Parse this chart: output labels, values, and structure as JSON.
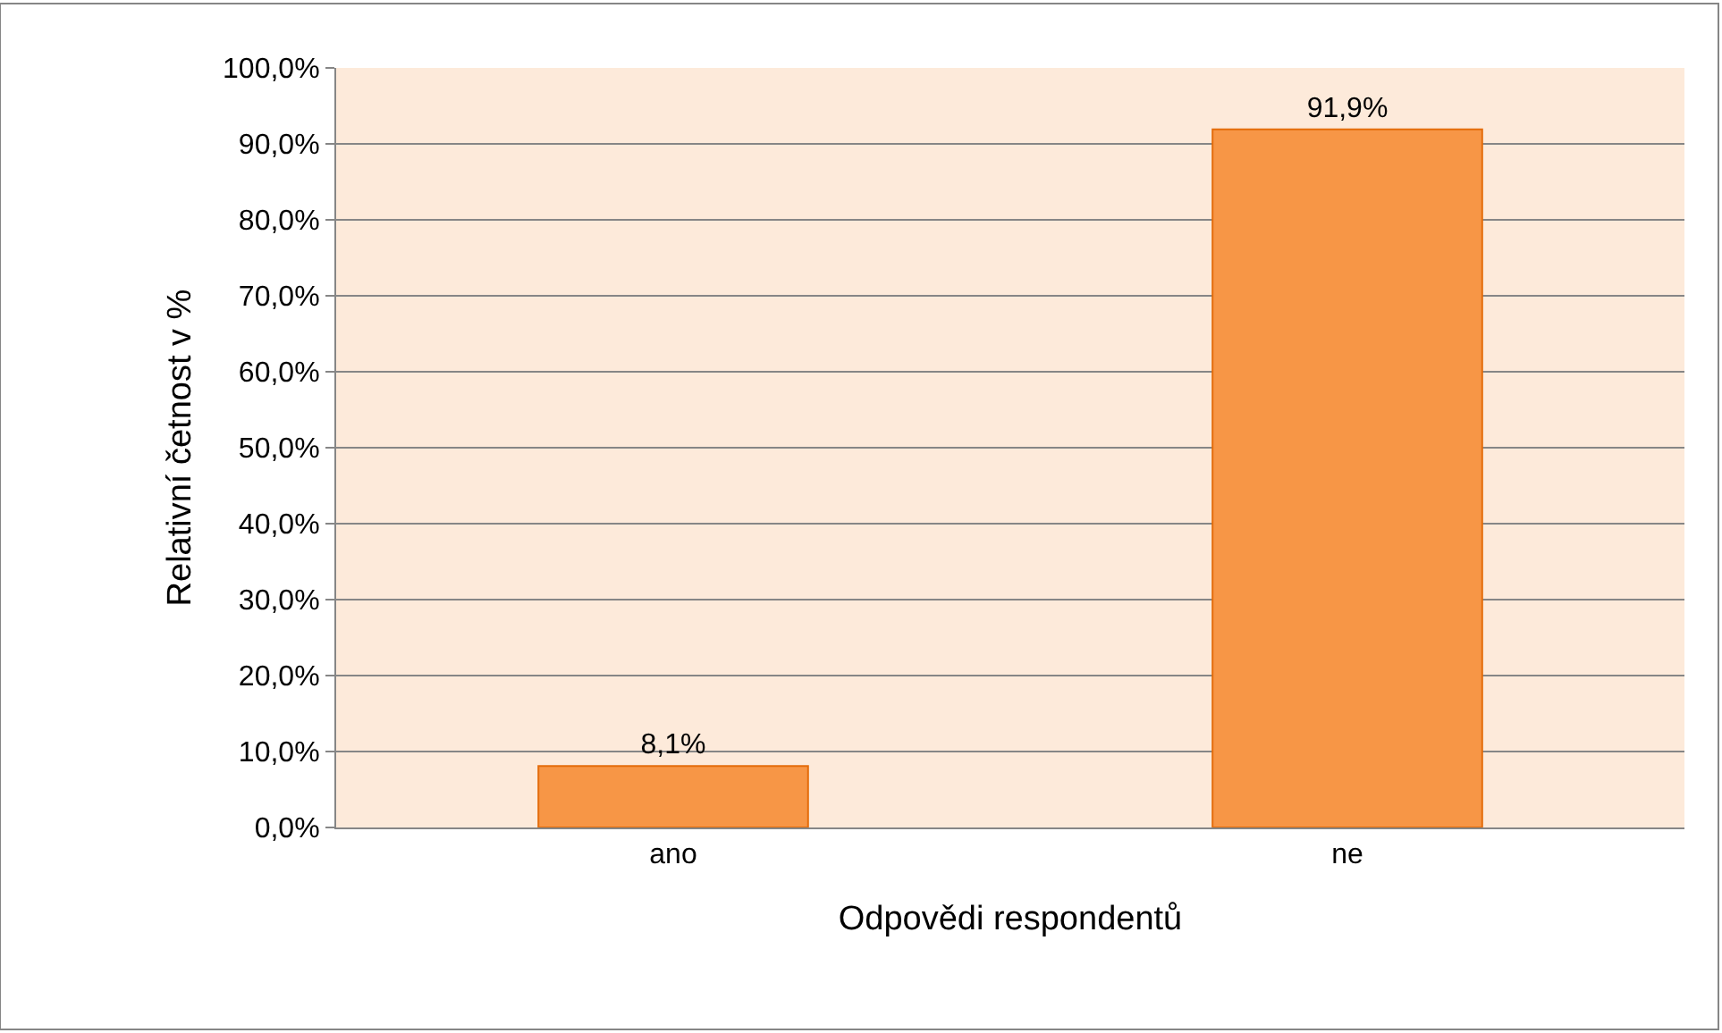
{
  "chart_data": {
    "type": "bar",
    "xlabel": "Odpovědi respondentů",
    "ylabel": "Relativní četnost v %",
    "categories": [
      "ano",
      "ne"
    ],
    "values": [
      8.1,
      91.9
    ],
    "value_labels": [
      "8,1%",
      "91,9%"
    ],
    "color": "#f79646",
    "ylim": [
      0,
      100
    ],
    "yticks": [
      {
        "value": 0,
        "label": "0,0%"
      },
      {
        "value": 10,
        "label": "10,0%"
      },
      {
        "value": 20,
        "label": "20,0%"
      },
      {
        "value": 30,
        "label": "30,0%"
      },
      {
        "value": 40,
        "label": "40,0%"
      },
      {
        "value": 50,
        "label": "50,0%"
      },
      {
        "value": 60,
        "label": "60,0%"
      },
      {
        "value": 70,
        "label": "70,0%"
      },
      {
        "value": 80,
        "label": "80,0%"
      },
      {
        "value": 90,
        "label": "90,0%"
      },
      {
        "value": 100,
        "label": "100,0%"
      }
    ],
    "grid": "y",
    "legend": false
  }
}
